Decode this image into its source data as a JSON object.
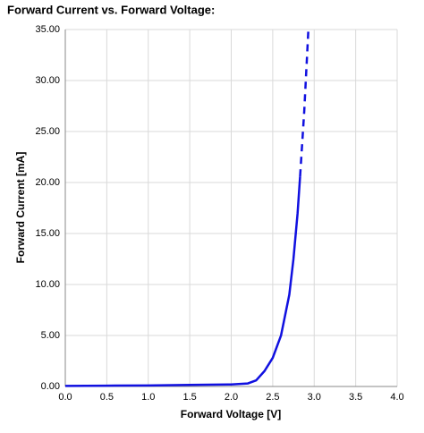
{
  "chart_data": {
    "type": "line",
    "title": "Forward Current vs. Forward Voltage:",
    "x_label": "Forward Voltage [V]",
    "y_label": "Forward Current [mA]",
    "xlim": [
      0,
      4
    ],
    "ylim": [
      0,
      35
    ],
    "xticks": [
      {
        "value": 0,
        "label": "0.0"
      },
      {
        "value": 0.5,
        "label": "0.5"
      },
      {
        "value": 1,
        "label": "1.0"
      },
      {
        "value": 1.5,
        "label": "1.5"
      },
      {
        "value": 2,
        "label": "2.0"
      },
      {
        "value": 2.5,
        "label": "2.5"
      },
      {
        "value": 3,
        "label": "3.0"
      },
      {
        "value": 3.5,
        "label": "3.5"
      },
      {
        "value": 4,
        "label": "4.0"
      }
    ],
    "yticks": [
      {
        "value": 0,
        "label": "0.00"
      },
      {
        "value": 5,
        "label": "5.00"
      },
      {
        "value": 10,
        "label": "10.00"
      },
      {
        "value": 15,
        "label": "15.00"
      },
      {
        "value": 20,
        "label": "20.00"
      },
      {
        "value": 25,
        "label": "25.00"
      },
      {
        "value": 30,
        "label": "30.00"
      },
      {
        "value": 35,
        "label": "35.00"
      }
    ],
    "grid": true,
    "series": [
      {
        "color": "#1010e0",
        "dashed": false,
        "x": [
          0,
          0.5,
          1.0,
          1.5,
          2.0,
          2.2,
          2.3,
          2.4,
          2.5,
          2.6,
          2.7,
          2.75,
          2.8,
          2.83
        ],
        "values": [
          0.05,
          0.08,
          0.1,
          0.15,
          0.2,
          0.3,
          0.6,
          1.5,
          2.8,
          5,
          9,
          12.5,
          17,
          20.6
        ]
      },
      {
        "color": "#1010e0",
        "dashed": true,
        "x": [
          2.83,
          2.88,
          2.93
        ],
        "values": [
          20.6,
          27,
          35
        ]
      }
    ]
  }
}
